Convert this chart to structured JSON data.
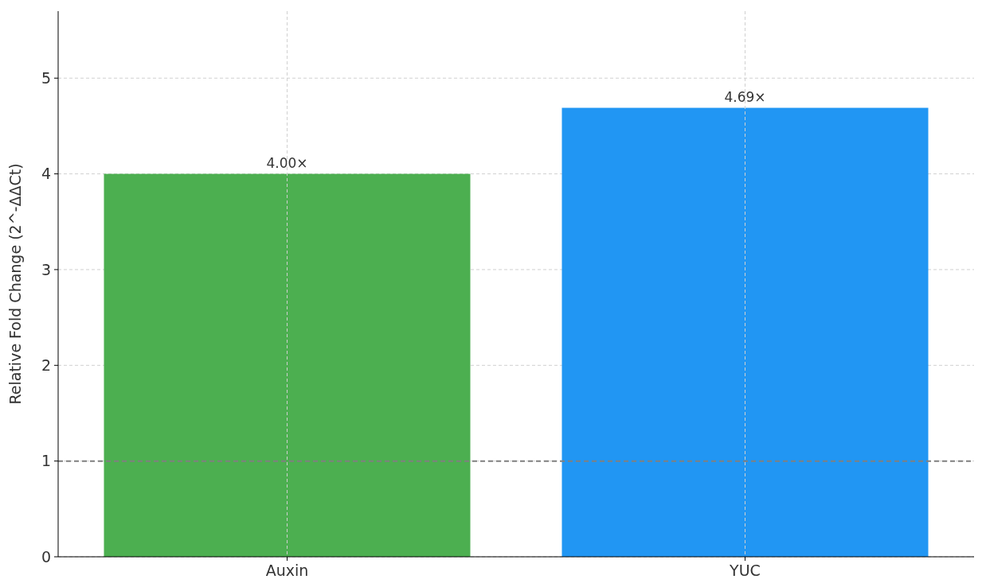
{
  "chart_data": {
    "type": "bar",
    "ylabel": "Relative Fold Change (2^-ΔΔCt)",
    "categories": [
      "Auxin",
      "YUC"
    ],
    "values": [
      4.0,
      4.69
    ],
    "colors": [
      "#4caf50",
      "#2196f3"
    ],
    "value_labels": [
      "4.00×",
      "4.69×"
    ],
    "ylim": [
      0,
      5.7
    ],
    "yticks": [
      0,
      1,
      2,
      3,
      4,
      5
    ],
    "grid": true,
    "ref_lines": [
      {
        "axis": "y",
        "value": 1,
        "color": "#808080",
        "line_style": "dashed"
      }
    ]
  }
}
